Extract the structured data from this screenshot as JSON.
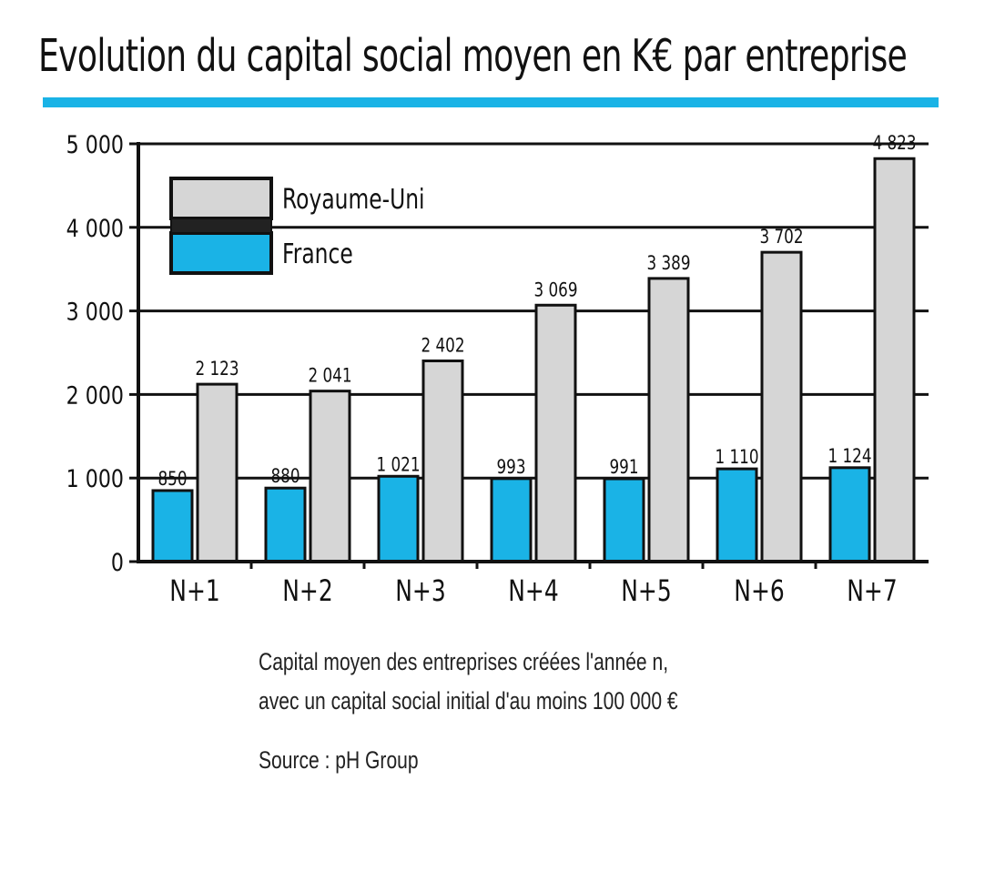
{
  "chart_data": {
    "type": "bar",
    "title": "Evolution du capital social moyen en K€ par entreprise",
    "categories": [
      "N+1",
      "N+2",
      "N+3",
      "N+4",
      "N+5",
      "N+6",
      "N+7"
    ],
    "series": [
      {
        "name": "France",
        "color": "#1ab3e6",
        "values": [
          850,
          880,
          1021,
          993,
          991,
          1110,
          1124
        ],
        "labels": [
          "850",
          "880",
          "1 021",
          "993",
          "991",
          "1 110",
          "1 124"
        ]
      },
      {
        "name": "Royaume-Uni",
        "color": "#d6d6d6",
        "values": [
          2123,
          2041,
          2402,
          3069,
          3389,
          3702,
          4823
        ],
        "labels": [
          "2 123",
          "2 041",
          "2 402",
          "3 069",
          "3 389",
          "3 702",
          "4 823"
        ]
      }
    ],
    "ylim": [
      0,
      5000
    ],
    "yticks": [
      0,
      1000,
      2000,
      3000,
      4000,
      5000
    ],
    "ytick_labels": [
      "0",
      "1 000",
      "2 000",
      "3 000",
      "4 000",
      "5 000"
    ],
    "grid": true,
    "legend_position": "top-left",
    "legend": [
      {
        "name": "Royaume-Uni",
        "color": "#d6d6d6"
      },
      {
        "name": "France",
        "color": "#1ab3e6"
      }
    ],
    "xlabel": "",
    "ylabel": ""
  },
  "caption": {
    "line1": "Capital moyen des entreprises créées l'année n,",
    "line2": "avec un capital social initial d'au moins 100 000 €",
    "source": "Source : pH Group"
  }
}
